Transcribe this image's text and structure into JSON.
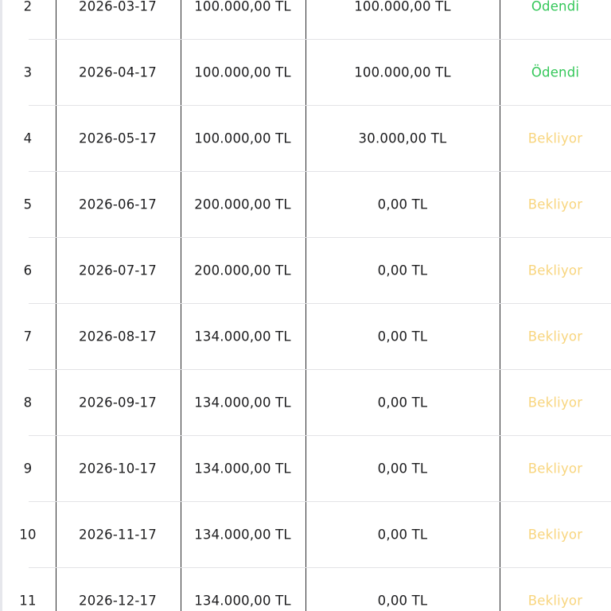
{
  "table": {
    "rows": [
      {
        "no": "2",
        "date": "2026-03-17",
        "amount": "100.000,00 TL",
        "paid": "100.000,00 TL",
        "status": "Ödendi",
        "status_color": "#34c759"
      },
      {
        "no": "3",
        "date": "2026-04-17",
        "amount": "100.000,00 TL",
        "paid": "100.000,00 TL",
        "status": "Ödendi",
        "status_color": "#34c759"
      },
      {
        "no": "4",
        "date": "2026-05-17",
        "amount": "100.000,00 TL",
        "paid": "30.000,00 TL",
        "status": "Bekliyor",
        "status_color": "#f8d57e"
      },
      {
        "no": "5",
        "date": "2026-06-17",
        "amount": "200.000,00 TL",
        "paid": "0,00 TL",
        "status": "Bekliyor",
        "status_color": "#f8d57e"
      },
      {
        "no": "6",
        "date": "2026-07-17",
        "amount": "200.000,00 TL",
        "paid": "0,00 TL",
        "status": "Bekliyor",
        "status_color": "#f8d57e"
      },
      {
        "no": "7",
        "date": "2026-08-17",
        "amount": "134.000,00 TL",
        "paid": "0,00 TL",
        "status": "Bekliyor",
        "status_color": "#f8d57e"
      },
      {
        "no": "8",
        "date": "2026-09-17",
        "amount": "134.000,00 TL",
        "paid": "0,00 TL",
        "status": "Bekliyor",
        "status_color": "#f8d57e"
      },
      {
        "no": "9",
        "date": "2026-10-17",
        "amount": "134.000,00 TL",
        "paid": "0,00 TL",
        "status": "Bekliyor",
        "status_color": "#f8d57e"
      },
      {
        "no": "10",
        "date": "2026-11-17",
        "amount": "134.000,00 TL",
        "paid": "0,00 TL",
        "status": "Bekliyor",
        "status_color": "#f8d57e"
      },
      {
        "no": "11",
        "date": "2026-12-17",
        "amount": "134.000,00 TL",
        "paid": "0,00 TL",
        "status": "Bekliyor",
        "status_color": "#f8d57e"
      }
    ]
  }
}
